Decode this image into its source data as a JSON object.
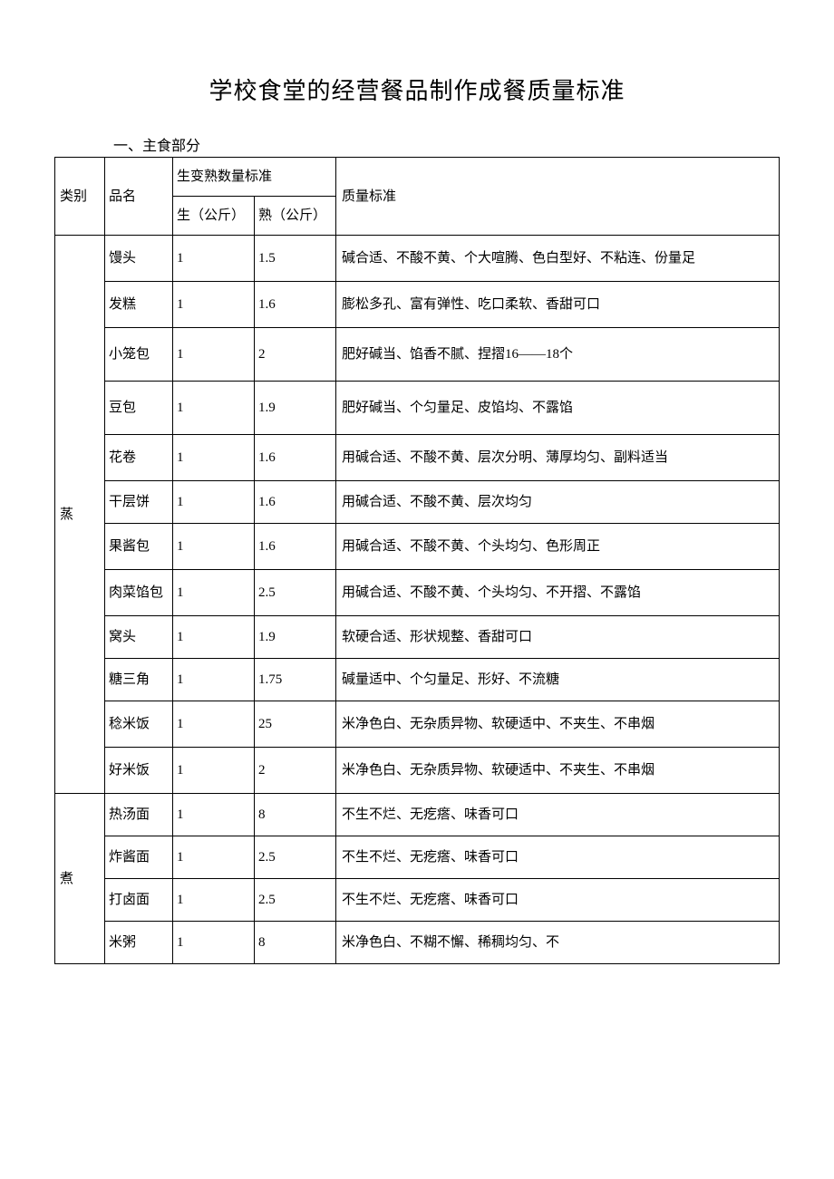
{
  "doc": {
    "title": "学校食堂的经营餐品制作成餐质量标准",
    "section_heading": "一、主食部分"
  },
  "table": {
    "headers": {
      "category": "类别",
      "name": "品名",
      "conversion_group": "生变熟数量标准",
      "raw": "生（公斤）",
      "cooked": "熟（公斤）",
      "quality": "质量标准"
    },
    "categories": [
      {
        "label": "蒸",
        "rows": [
          {
            "name": "馒头",
            "raw": "1",
            "cooked": "1.5",
            "quality": "碱合适、不酸不黄、个大喧腾、色白型好、不粘连、份量足"
          },
          {
            "name": "发糕",
            "raw": "1",
            "cooked": "1.6",
            "quality": "膨松多孔、富有弹性、吃口柔软、香甜可口"
          },
          {
            "name": "小笼包",
            "raw": "1",
            "cooked": "2",
            "quality": "肥好碱当、馅香不腻、捏摺16——18个"
          },
          {
            "name": "豆包",
            "raw": "1",
            "cooked": "1.9",
            "quality": "肥好碱当、个匀量足、皮馅均、不露馅"
          },
          {
            "name": "花卷",
            "raw": "1",
            "cooked": "1.6",
            "quality": "用碱合适、不酸不黄、层次分明、薄厚均匀、副料适当"
          },
          {
            "name": "干层饼",
            "raw": "1",
            "cooked": "1.6",
            "quality": "用碱合适、不酸不黄、层次均匀"
          },
          {
            "name": "果酱包",
            "raw": "1",
            "cooked": "1.6",
            "quality": "用碱合适、不酸不黄、个头均匀、色形周正"
          },
          {
            "name": "肉菜馅包",
            "raw": "1",
            "cooked": "2.5",
            "quality": "用碱合适、不酸不黄、个头均匀、不开摺、不露馅"
          },
          {
            "name": "窝头",
            "raw": "1",
            "cooked": "1.9",
            "quality": "软硬合适、形状规整、香甜可口"
          },
          {
            "name": "糖三角",
            "raw": "1",
            "cooked": "1.75",
            "quality": "碱量适中、个匀量足、形好、不流糖"
          },
          {
            "name": "稔米饭",
            "raw": "1",
            "cooked": "25",
            "quality": "米净色白、无杂质异物、软硬适中、不夹生、不串烟"
          },
          {
            "name": "好米饭",
            "raw": "1",
            "cooked": "2",
            "quality": "米净色白、无杂质异物、软硬适中、不夹生、不串烟"
          }
        ]
      },
      {
        "label": "煮",
        "rows": [
          {
            "name": "热汤面",
            "raw": "1",
            "cooked": "8",
            "quality": "不生不烂、无疙瘩、味香可口"
          },
          {
            "name": "炸酱面",
            "raw": "1",
            "cooked": "2.5",
            "quality": "不生不烂、无疙瘩、味香可口"
          },
          {
            "name": "打卤面",
            "raw": "1",
            "cooked": "2.5",
            "quality": "不生不烂、无疙瘩、味香可口"
          },
          {
            "name": "米粥",
            "raw": "1",
            "cooked": "8",
            "quality": "米净色白、不糊不懈、稀稠均匀、不"
          }
        ]
      }
    ]
  },
  "style": {
    "background_color": "#ffffff",
    "text_color": "#000000",
    "border_color": "#000000",
    "title_fontsize": 26,
    "body_fontsize": 15,
    "font_family": "SimSun"
  }
}
